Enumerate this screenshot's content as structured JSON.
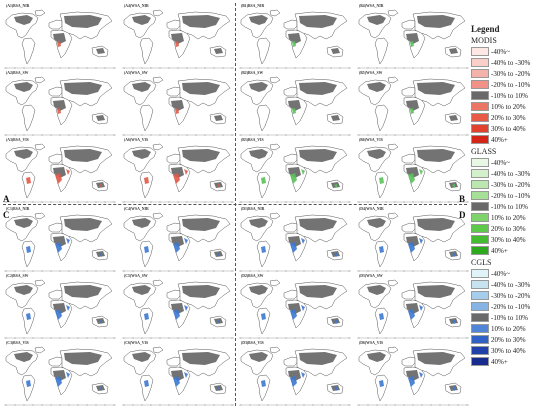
{
  "quadrants": [
    {
      "letter": "A",
      "panels": [
        "(A1)BSA_NIR",
        "(A4)WSA_NIR",
        "(A2)BSA_SW",
        "(A5)WSA_SW",
        "(A3)BSA_VIS",
        "(A6)WSA_VIS"
      ]
    },
    {
      "letter": "B",
      "panels": [
        "(B1)BSA_NIR",
        "(B4)WSA_NIR",
        "(B2)BSA_SW",
        "(B5)WSA_SW",
        "(B3)BSA_VIS",
        "(B6)WSA_VIS"
      ]
    },
    {
      "letter": "C",
      "panels": [
        "(C1)BSA_NIR",
        "(C4)WSA_NIR",
        "(C2)BSA_SW",
        "(C5)WSA_SW",
        "(C3)BSA_VIS",
        "(C6)WSA_VIS"
      ]
    },
    {
      "letter": "D",
      "panels": [
        "(D1)BSA_NIR",
        "(D4)WSA_NIR",
        "(D2)BSA_SW",
        "(D5)WSA_SW",
        "(D3)BSA_VIS",
        "(D6)WSA_VIS"
      ]
    }
  ],
  "accent": {
    "A": "#e05a48",
    "B": "#5cc05a",
    "C": "#3c78d0",
    "D": "#3c78d0"
  },
  "legend": {
    "title": "Legend",
    "sections": [
      {
        "name": "MODIS",
        "items": [
          {
            "label": "-40%~",
            "color": "#fde8e6"
          },
          {
            "label": "-40% to -30%",
            "color": "#f9cfc9"
          },
          {
            "label": "-30% to -20%",
            "color": "#f5b2aa"
          },
          {
            "label": "-20% to -10%",
            "color": "#f09287"
          },
          {
            "label": "-10% to 10%",
            "color": "#6a6a6a"
          },
          {
            "label": "10% to 20%",
            "color": "#ec7664"
          },
          {
            "label": "20% to 30%",
            "color": "#e85a46"
          },
          {
            "label": "30% to 40%",
            "color": "#e2412d"
          },
          {
            "label": "40%+",
            "color": "#d42518"
          }
        ]
      },
      {
        "name": "GLASS",
        "items": [
          {
            "label": "-40%~",
            "color": "#e8f8e4"
          },
          {
            "label": "-40% to -30%",
            "color": "#d2f0ca"
          },
          {
            "label": "-30% to -20%",
            "color": "#bbe8b0"
          },
          {
            "label": "-20% to -10%",
            "color": "#a5e096"
          },
          {
            "label": "-10% to 10%",
            "color": "#6a6a6a"
          },
          {
            "label": "10% to 20%",
            "color": "#7fd36b"
          },
          {
            "label": "20% to 30%",
            "color": "#5ec84a"
          },
          {
            "label": "30% to 40%",
            "color": "#44bb30"
          },
          {
            "label": "40%+",
            "color": "#2ea81d"
          }
        ]
      },
      {
        "name": "CGLS",
        "items": [
          {
            "label": "-40%~",
            "color": "#dff3f8"
          },
          {
            "label": "-40% to -30%",
            "color": "#c5e3f1"
          },
          {
            "label": "-30% to -20%",
            "color": "#a7cdec"
          },
          {
            "label": "-20% to -10%",
            "color": "#86b4e4"
          },
          {
            "label": "-10% to 10%",
            "color": "#6a6a6a"
          },
          {
            "label": "10% to 20%",
            "color": "#4f86d8"
          },
          {
            "label": "20% to 30%",
            "color": "#2f62c4"
          },
          {
            "label": "30% to 40%",
            "color": "#2042a8"
          },
          {
            "label": "40%+",
            "color": "#172c8c"
          }
        ]
      }
    ]
  },
  "map_style": {
    "land": "#ffffff",
    "outline": "#555555",
    "change": "#5a5a5a"
  }
}
